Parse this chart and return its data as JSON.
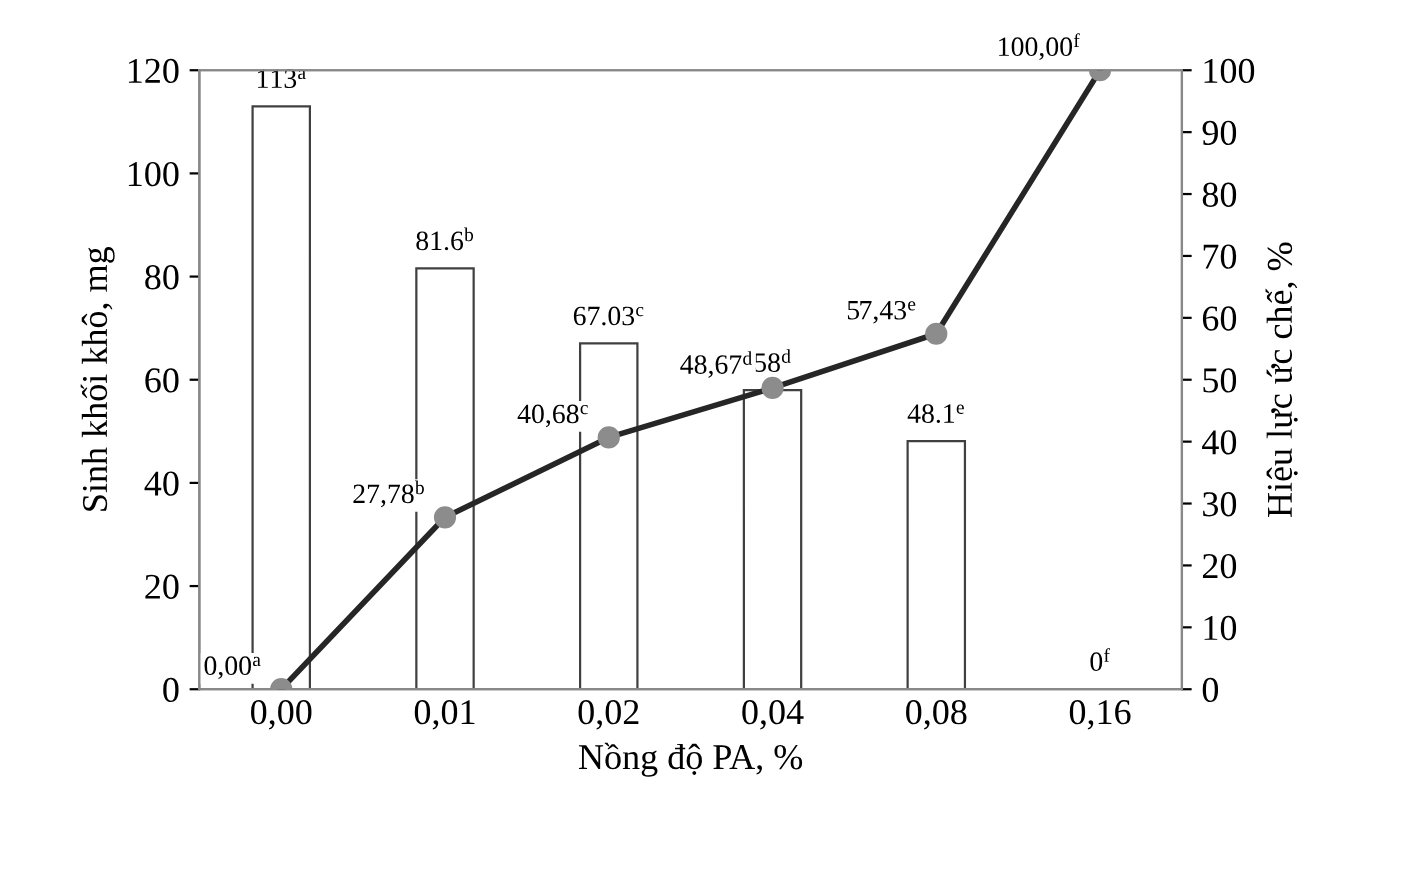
{
  "chart_data": {
    "type": "bar",
    "xlabel": "Nồng độ PA, %",
    "ylabel": "Sinh khối khô, mg",
    "y2label": "Hiệu lực ức chế, %",
    "categories": [
      "0,00",
      "0,01",
      "0,02",
      "0,04",
      "0,08",
      "0,16"
    ],
    "series": [
      {
        "color": "#ffffff",
        "values": [
          113,
          81.6,
          67.03,
          58,
          48.1,
          0
        ],
        "value_labels": [
          "113$^{a}$",
          "81.6$^{b}$",
          "67.03$^{c}$",
          "58$^{d}$",
          "48.1$^{e}$",
          "0$^{f}$"
        ]
      },
      {
        "type": "line",
        "axis": "y2",
        "color": "#262626",
        "values": [
          0,
          27.78,
          40.68,
          48.67,
          57.43,
          100
        ],
        "value_labels": [
          "0,00$^{a}$",
          "27,78$^{b}$",
          "40,68$^{c}$",
          "48,67$^{d}$",
          "57,43$^{e}$",
          "100,00$^{f}$"
        ]
      }
    ],
    "ylim": [
      0,
      120
    ],
    "yticks": [
      0,
      20,
      40,
      60,
      80,
      100,
      120
    ],
    "y2lim": [
      0,
      100
    ],
    "y2ticks": [
      0,
      10,
      20,
      30,
      40,
      50,
      60,
      70,
      80,
      90,
      100
    ],
    "marker": "circle",
    "line_style": "solid",
    "grid": false
  }
}
